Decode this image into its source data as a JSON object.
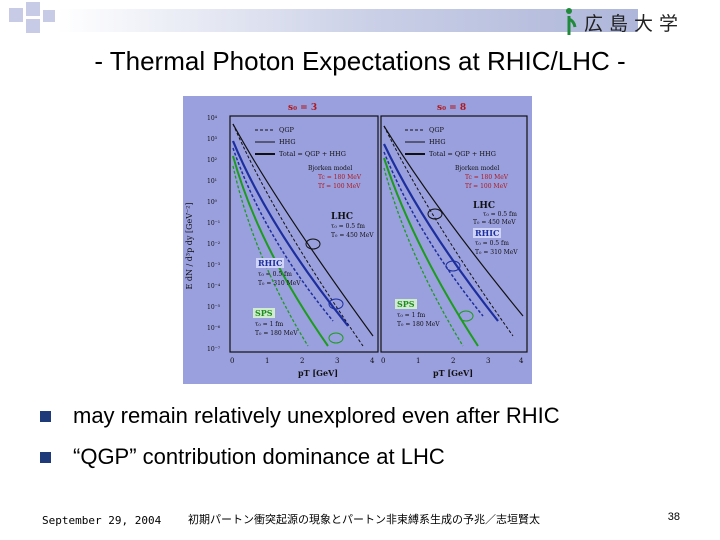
{
  "header": {
    "logo_text": "広島大学"
  },
  "title": "- Thermal Photon Expectations at RHIC/LHC -",
  "figure": {
    "panels": [
      {
        "s0_label": "s₀ = 3",
        "legend": [
          "QGP",
          "HHG",
          "Total = QGP + HHG"
        ],
        "annotations": {
          "lhc": [
            "LHC",
            "τ₀ = 0.5 fm",
            "T₀ = 450 MeV"
          ],
          "rhic": [
            "RHIC",
            "τ₀ = 0.5 fm",
            "T₀ = 310 MeV"
          ],
          "sps": [
            "SPS",
            "τ₀ = 1 fm",
            "T₀ = 180 MeV"
          ]
        }
      },
      {
        "s0_label": "s₀ = 8",
        "legend": [
          "QGP",
          "HHG",
          "Total = QGP + HHG"
        ],
        "model": [
          "Bjorken model",
          "Tc = 180 MeV",
          "Tf = 100 MeV"
        ],
        "annotations": {
          "lhc": [
            "LHC",
            "τ₀ = 0.5 fm",
            "T₀ = 450 MeV"
          ],
          "rhic": [
            "RHIC",
            "τ₀ = 0.5 fm",
            "T₀ = 310 MeV"
          ],
          "sps": [
            "SPS",
            "τ₀ = 1 fm",
            "T₀ = 180 MeV"
          ]
        }
      }
    ],
    "left_model": [
      "Bjorken model",
      "Tc = 180 MeV",
      "Tf = 100 MeV"
    ],
    "y_axis_label": "E dN / d³p dy [GeV⁻²]",
    "y_ticks": [
      "10⁴",
      "10³",
      "10²",
      "10¹",
      "10⁰",
      "10⁻¹",
      "10⁻²",
      "10⁻³",
      "10⁻⁴",
      "10⁻⁵",
      "10⁻⁶",
      "10⁻⁷"
    ],
    "x_ticks": [
      "0",
      "1",
      "2",
      "3",
      "4"
    ],
    "x_axis_label": "pT [GeV]"
  },
  "bullets": [
    "may remain relatively unexplored even after RHIC",
    "“QGP” contribution dominance at LHC"
  ],
  "footer": {
    "date": "September 29, 2004",
    "center": "初期パートン衝突起源の現象とパートン非束縛系生成の予兆／志垣賢太",
    "page": "38"
  },
  "colors": {
    "figure_bg": "#9aa0de",
    "title_bar": "#aeb6da",
    "bullet": "#1e3a78",
    "rhic_curve": "#1d2f9e",
    "sps_curve": "#1c9c1c"
  }
}
